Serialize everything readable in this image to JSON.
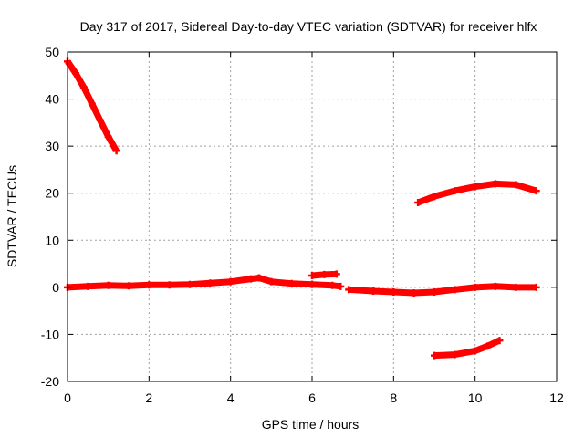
{
  "chart_data": {
    "type": "line",
    "title": "Day 317 of 2017, Sidereal Day-to-day VTEC variation (SDTVAR) for receiver hlfx",
    "xlabel": "GPS time / hours",
    "ylabel": "SDTVAR / TECUs",
    "xlim": [
      0,
      12
    ],
    "ylim": [
      -20,
      50
    ],
    "xticks": [
      "0",
      "2",
      "4",
      "6",
      "8",
      "10",
      "12"
    ],
    "yticks": [
      "-20",
      "-10",
      "0",
      "10",
      "20",
      "30",
      "40",
      "50"
    ],
    "grid": true,
    "series_color": "#ff0000",
    "series": [
      {
        "values": [
          [
            0.0,
            48
          ],
          [
            0.2,
            45.5
          ],
          [
            0.4,
            42.5
          ],
          [
            0.6,
            39
          ],
          [
            0.8,
            35.5
          ],
          [
            1.0,
            32
          ],
          [
            1.2,
            29
          ]
        ]
      },
      {
        "values": [
          [
            0.0,
            0.0
          ],
          [
            0.5,
            0.2
          ],
          [
            1.0,
            0.4
          ],
          [
            1.5,
            0.3
          ],
          [
            2.0,
            0.5
          ],
          [
            2.5,
            0.5
          ],
          [
            3.0,
            0.6
          ],
          [
            3.5,
            0.9
          ],
          [
            4.0,
            1.2
          ],
          [
            4.5,
            1.8
          ],
          [
            4.7,
            2.0
          ],
          [
            5.0,
            1.2
          ],
          [
            5.5,
            0.8
          ],
          [
            6.0,
            0.6
          ],
          [
            6.5,
            0.4
          ],
          [
            6.7,
            0.2
          ]
        ]
      },
      {
        "values": [
          [
            6.0,
            2.5
          ],
          [
            6.3,
            2.7
          ],
          [
            6.6,
            2.8
          ]
        ]
      },
      {
        "values": [
          [
            6.9,
            -0.5
          ],
          [
            7.5,
            -0.8
          ],
          [
            8.0,
            -1.0
          ],
          [
            8.5,
            -1.2
          ],
          [
            9.0,
            -1.0
          ],
          [
            9.5,
            -0.5
          ],
          [
            10.0,
            0.0
          ],
          [
            10.5,
            0.2
          ],
          [
            11.0,
            0.0
          ],
          [
            11.5,
            0.0
          ]
        ]
      },
      {
        "values": [
          [
            8.6,
            18
          ],
          [
            9.0,
            19.3
          ],
          [
            9.5,
            20.5
          ],
          [
            10.0,
            21.4
          ],
          [
            10.5,
            22.0
          ],
          [
            11.0,
            21.8
          ],
          [
            11.5,
            20.5
          ]
        ]
      },
      {
        "values": [
          [
            9.0,
            -14.5
          ],
          [
            9.5,
            -14.3
          ],
          [
            10.0,
            -13.5
          ],
          [
            10.3,
            -12.5
          ],
          [
            10.6,
            -11.3
          ]
        ]
      }
    ]
  }
}
